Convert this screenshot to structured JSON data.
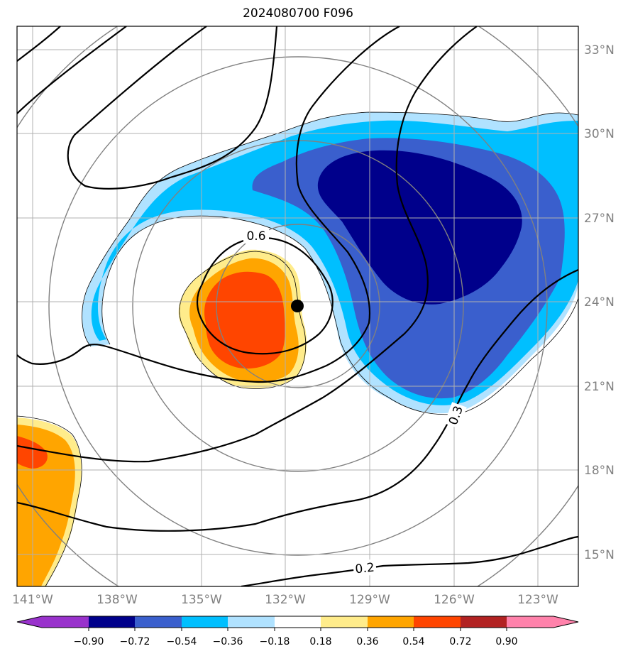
{
  "title": "2024080700 F096",
  "map": {
    "lon_labels": [
      "141°W",
      "138°W",
      "135°W",
      "132°W",
      "129°W",
      "126°W",
      "123°W"
    ],
    "lat_labels": [
      "33°N",
      "30°N",
      "27°N",
      "24°N",
      "21°N",
      "18°N",
      "15°N"
    ],
    "contour_labels": [
      "0.6",
      "0.3",
      "0.2"
    ],
    "storm_center": {
      "lon": -132.0,
      "lat": 23.8
    }
  },
  "colorbar": {
    "ticks": [
      "−0.90",
      "−0.72",
      "−0.54",
      "−0.36",
      "−0.18",
      "0.18",
      "0.36",
      "0.54",
      "0.72",
      "0.90"
    ],
    "colors": [
      "#9932cc",
      "#00008b",
      "#3a5fcd",
      "#00bfff",
      "#b0e2ff",
      "#ffffff",
      "#ffec8b",
      "#ffa500",
      "#ff4500",
      "#b22222",
      "#ff82ab"
    ]
  },
  "colors": {
    "dark_blue": "#00008b",
    "royal_blue": "#3a5fcd",
    "deep_sky": "#00bfff",
    "light_sky": "#b0e2ff",
    "light_yellow": "#ffec8b",
    "orange": "#ffa500",
    "orange_red": "#ff4500"
  }
}
